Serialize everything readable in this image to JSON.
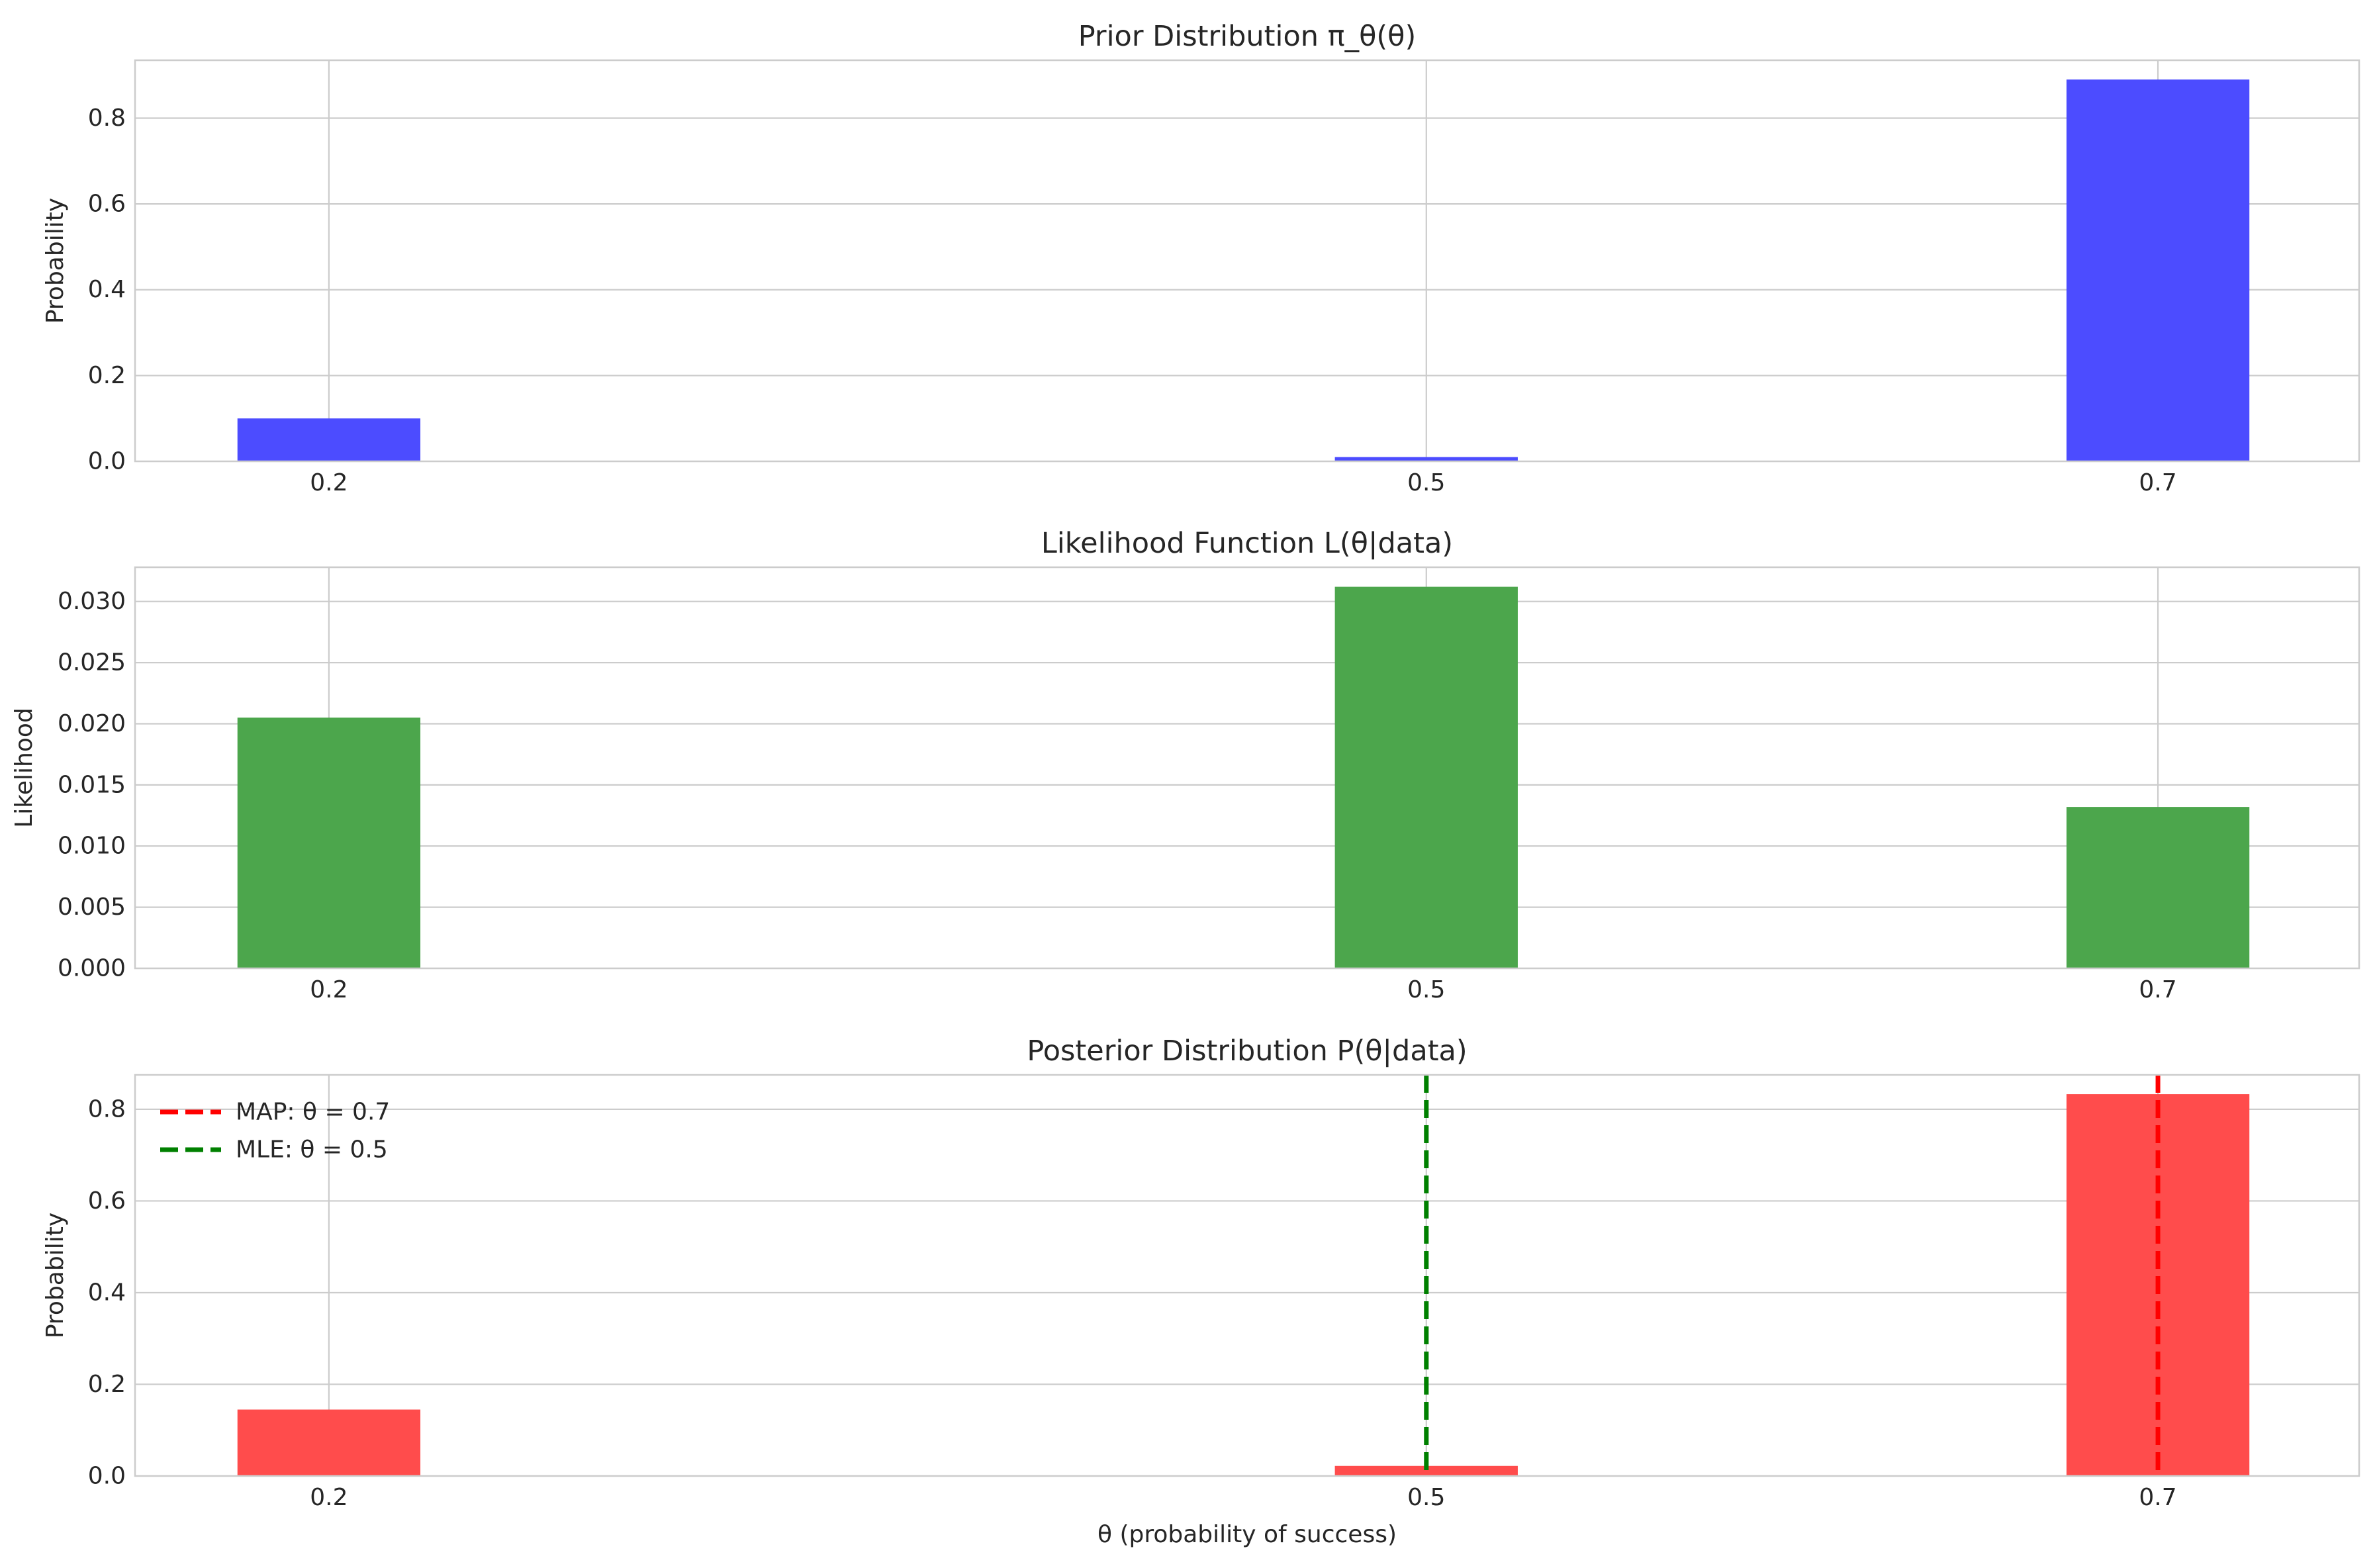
{
  "chart_data": [
    {
      "type": "bar",
      "title": "Prior Distribution π_θ(θ)",
      "xlabel": "",
      "ylabel": "Probability",
      "x": [
        0.2,
        0.5,
        0.7
      ],
      "x_tick_labels": [
        "0.2",
        "0.5",
        "0.7"
      ],
      "values": [
        0.1,
        0.01,
        0.89
      ],
      "color": "#4c4cff",
      "xlim": [
        0.147,
        0.755
      ],
      "ylim": [
        0,
        0.935
      ],
      "y_ticks": [
        0,
        0.2,
        0.4,
        0.6,
        0.8
      ],
      "y_tick_labels": [
        "0.0",
        "0.2",
        "0.4",
        "0.6",
        "0.8"
      ],
      "grid": true
    },
    {
      "type": "bar",
      "title": "Likelihood Function L(θ|data)",
      "xlabel": "",
      "ylabel": "Likelihood",
      "x": [
        0.2,
        0.5,
        0.7
      ],
      "x_tick_labels": [
        "0.2",
        "0.5",
        "0.7"
      ],
      "values": [
        0.0205,
        0.0312,
        0.0132
      ],
      "color": "#4ca64c",
      "xlim": [
        0.147,
        0.755
      ],
      "ylim": [
        0,
        0.0328
      ],
      "y_ticks": [
        0,
        0.005,
        0.01,
        0.015,
        0.02,
        0.025,
        0.03
      ],
      "y_tick_labels": [
        "0.000",
        "0.005",
        "0.010",
        "0.015",
        "0.020",
        "0.025",
        "0.030"
      ],
      "grid": true
    },
    {
      "type": "bar",
      "title": "Posterior Distribution P(θ|data)",
      "xlabel": "θ (probability of success)",
      "ylabel": "Probability",
      "x": [
        0.2,
        0.5,
        0.7
      ],
      "x_tick_labels": [
        "0.2",
        "0.5",
        "0.7"
      ],
      "values": [
        0.145,
        0.022,
        0.833
      ],
      "color": "#ff4c4c",
      "xlim": [
        0.147,
        0.755
      ],
      "ylim": [
        0,
        0.875
      ],
      "y_ticks": [
        0,
        0.2,
        0.4,
        0.6,
        0.8
      ],
      "y_tick_labels": [
        "0.0",
        "0.2",
        "0.4",
        "0.6",
        "0.8"
      ],
      "grid": true,
      "vlines": [
        {
          "x": 0.7,
          "label": "MAP: θ = 0.7",
          "color": "#ff0000"
        },
        {
          "x": 0.5,
          "label": "MLE: θ = 0.5",
          "color": "#008000"
        }
      ],
      "legend_position": "upper-left"
    }
  ]
}
